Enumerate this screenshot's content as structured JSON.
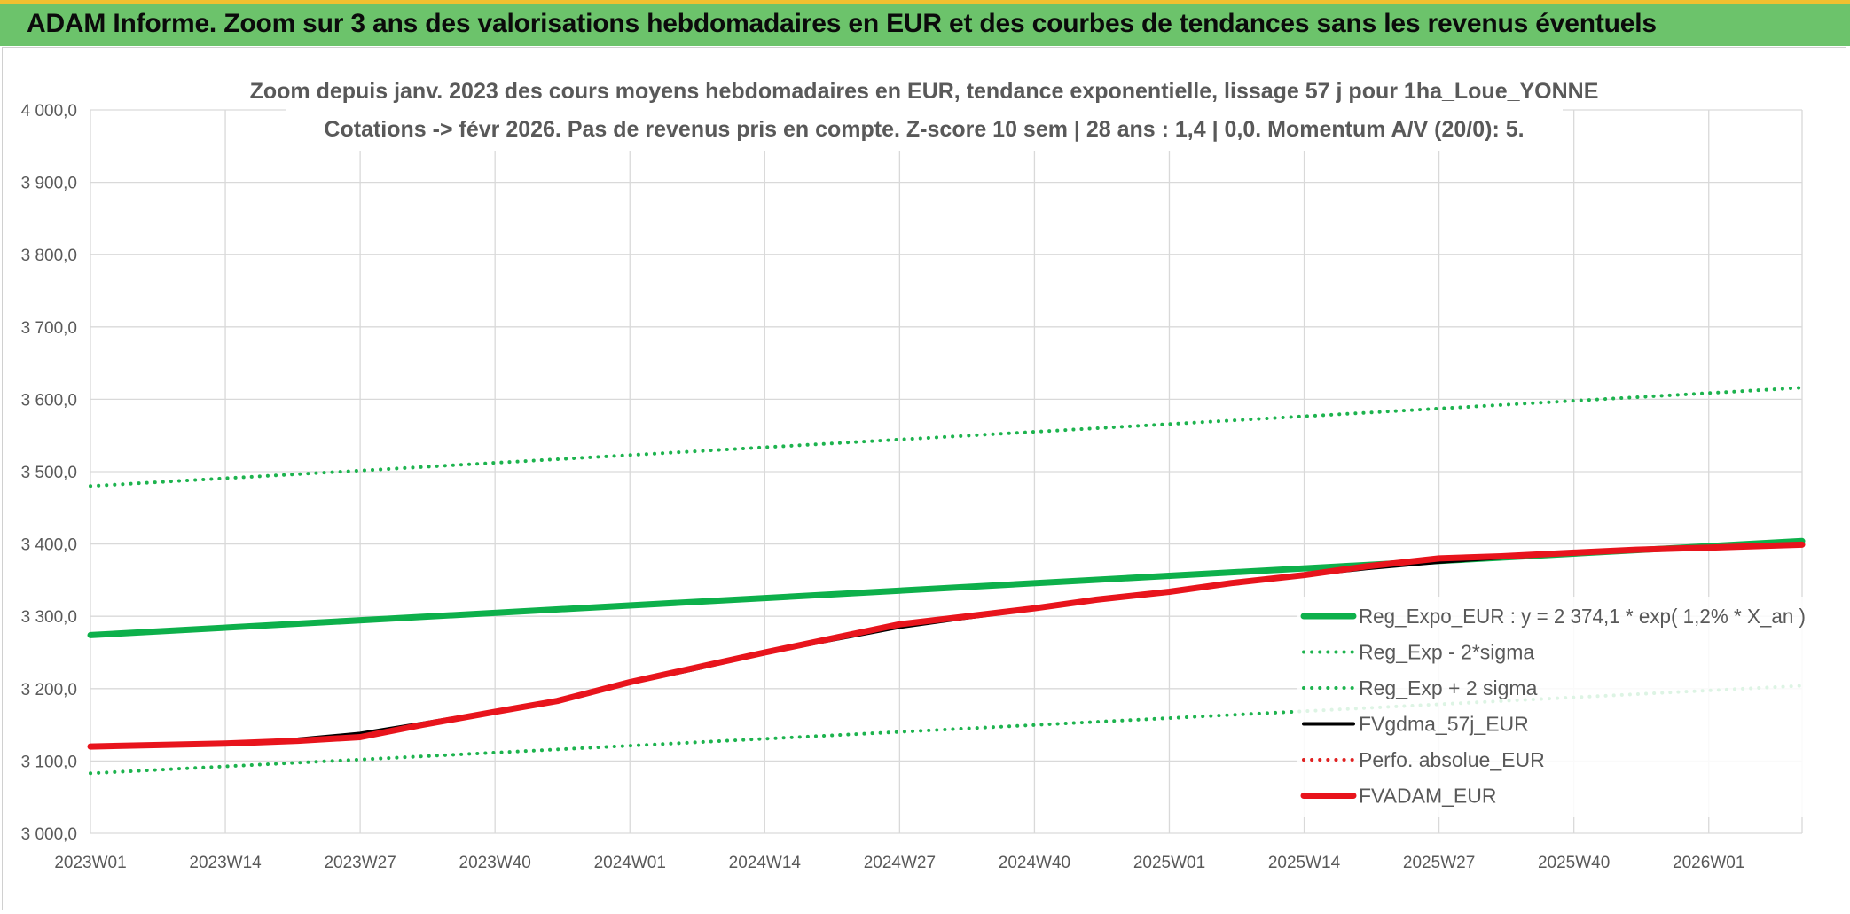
{
  "banner": {
    "title": "ADAM Informe. Zoom sur 3 ans des valorisations hebdomadaires en EUR et des courbes de tendances sans les revenus éventuels",
    "background": "#6cc36b"
  },
  "chart_data": {
    "type": "line",
    "title": "Zoom depuis janv. 2023 des cours moyens hebdomadaires en EUR, tendance exponentielle, lissage 57 j pour 1ha_Loue_YONNE",
    "subtitle": "Cotations -> févr 2026. Pas de revenus pris en compte. Z-score 10 sem | 28 ans : 1,4 | 0,0. Momentum A/V (20/0): 5.",
    "xlabel": "",
    "ylabel": "",
    "x_ticks": [
      "2023W01",
      "2023W14",
      "2023W27",
      "2023W40",
      "2024W01",
      "2024W14",
      "2024W27",
      "2024W40",
      "2025W01",
      "2025W14",
      "2025W27",
      "2025W40",
      "2026W01"
    ],
    "x_range": [
      0,
      165
    ],
    "y_ticks": [
      "3 000,0",
      "3 100,0",
      "3 200,0",
      "3 300,0",
      "3 400,0",
      "3 500,0",
      "3 600,0",
      "3 700,0",
      "3 800,0",
      "3 900,0",
      "4 000,0"
    ],
    "ylim": [
      3000,
      4000
    ],
    "grid": true,
    "legend_position": "right",
    "series": [
      {
        "name": "Reg_Expo_EUR : y = 2 374,1 * exp( 1,2% *  X_an )",
        "color": "#0db04b",
        "style": "solid-thick",
        "x": [
          0,
          165
        ],
        "y": [
          3274,
          3404
        ]
      },
      {
        "name": "Reg_Exp - 2*sigma",
        "color": "#1db34e",
        "style": "dotted",
        "x": [
          0,
          165
        ],
        "y": [
          3083,
          3204
        ]
      },
      {
        "name": "Reg_Exp + 2 sigma",
        "color": "#1db34e",
        "style": "dotted",
        "x": [
          0,
          165
        ],
        "y": [
          3480,
          3616
        ]
      },
      {
        "name": "FVgdma_57j_EUR",
        "color": "#000000",
        "style": "solid",
        "x": [
          0,
          13,
          20,
          26,
          32,
          39,
          45,
          52,
          58,
          65,
          71,
          78,
          84,
          91,
          97,
          104,
          110,
          117,
          123,
          130,
          136,
          143,
          149,
          156,
          165
        ],
        "y": [
          3120,
          3124,
          3130,
          3138,
          3152,
          3169,
          3183,
          3208,
          3226,
          3249,
          3266,
          3285,
          3297,
          3310,
          3322,
          3333,
          3345,
          3357,
          3366,
          3375,
          3381,
          3387,
          3392,
          3396,
          3399
        ]
      },
      {
        "name": "Perfo. absolue_EUR",
        "color": "#e02020",
        "style": "dotted",
        "x": [
          0,
          13,
          20,
          26,
          32,
          39,
          45,
          52,
          58,
          65,
          71,
          78,
          84,
          91,
          97,
          104,
          110,
          117,
          123,
          130,
          136,
          143,
          149,
          156,
          165
        ],
        "y": [
          3120,
          3124,
          3128,
          3133,
          3150,
          3168,
          3183,
          3209,
          3228,
          3250,
          3268,
          3289,
          3299,
          3311,
          3323,
          3334,
          3346,
          3357,
          3369,
          3380,
          3383,
          3388,
          3392,
          3395,
          3399
        ]
      },
      {
        "name": "FVADAM_EUR",
        "color": "#e8141c",
        "style": "solid-thick",
        "x": [
          0,
          13,
          20,
          26,
          32,
          39,
          45,
          52,
          58,
          65,
          71,
          78,
          84,
          91,
          97,
          104,
          110,
          117,
          123,
          130,
          136,
          143,
          149,
          156,
          165
        ],
        "y": [
          3120,
          3124,
          3128,
          3133,
          3150,
          3168,
          3183,
          3209,
          3228,
          3250,
          3268,
          3289,
          3299,
          3311,
          3323,
          3334,
          3346,
          3357,
          3369,
          3380,
          3383,
          3388,
          3392,
          3395,
          3399
        ]
      }
    ]
  }
}
